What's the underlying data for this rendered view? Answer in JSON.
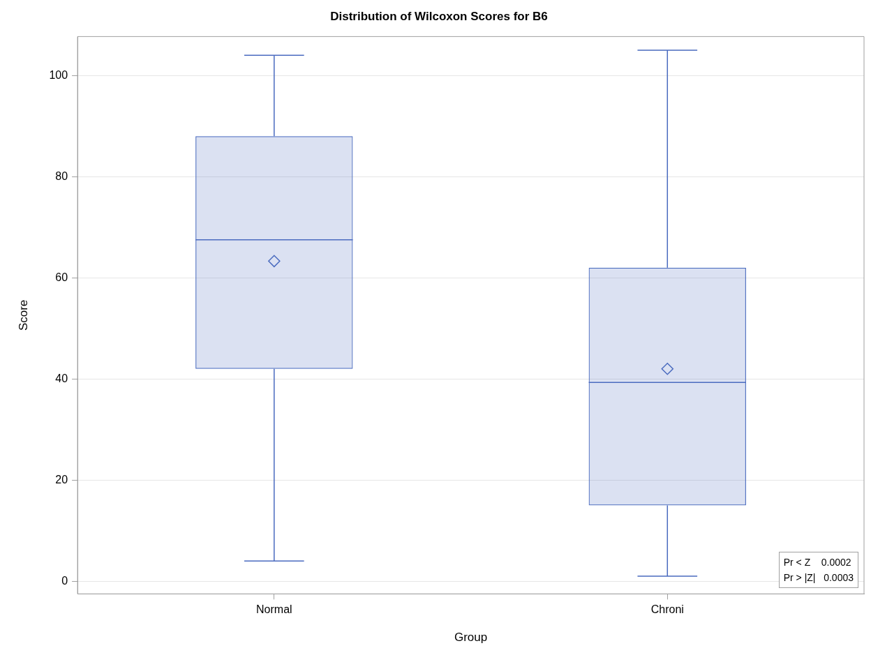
{
  "chart_data": {
    "type": "box",
    "title": "Distribution of Wilcoxon Scores for B6",
    "xlabel": "Group",
    "ylabel": "Score",
    "categories": [
      "Normal",
      "Chroni"
    ],
    "series": [
      {
        "color": "#4a6bbf",
        "boxes": [
          {
            "low": 4,
            "q1": 42,
            "median": 67.5,
            "q3": 88,
            "high": 104,
            "mean": 63.3
          },
          {
            "low": 1,
            "q1": 15,
            "median": 39.3,
            "q3": 62,
            "high": 105,
            "mean": 42
          }
        ]
      }
    ],
    "ylim": [
      -2.5,
      107.7
    ],
    "yticks": [
      0,
      20,
      40,
      60,
      80,
      100
    ],
    "grid": "y",
    "marker": "diamond",
    "legend": false,
    "annotations": [
      "Pr < Z    0.0002",
      "Pr > |Z|   0.0003"
    ]
  }
}
